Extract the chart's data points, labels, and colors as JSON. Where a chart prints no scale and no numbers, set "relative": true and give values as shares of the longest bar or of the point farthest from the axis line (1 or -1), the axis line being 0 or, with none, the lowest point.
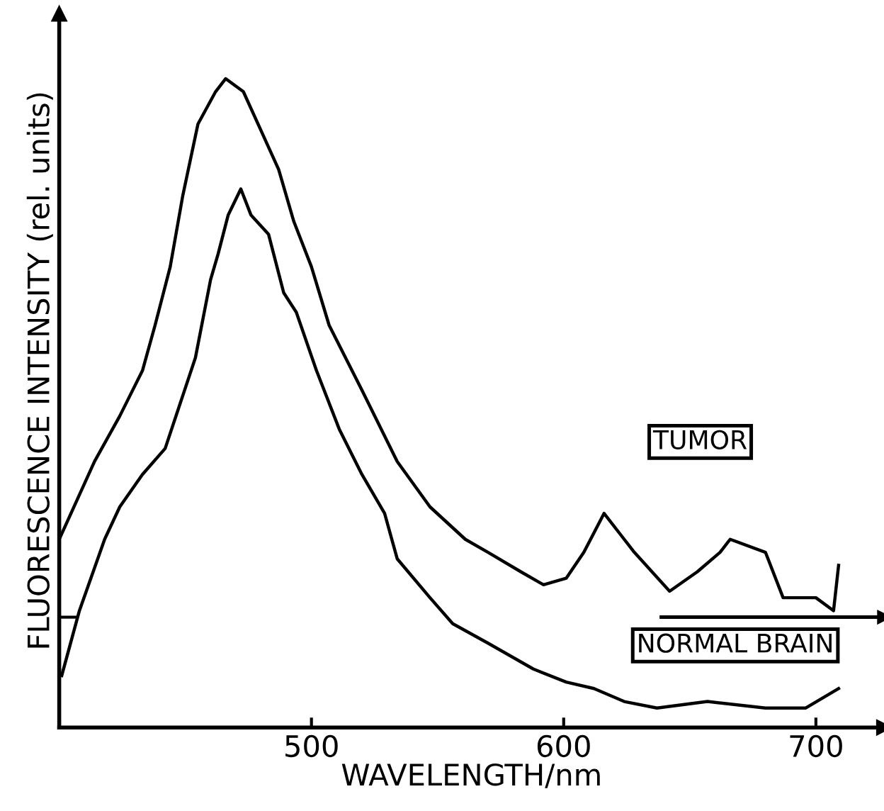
{
  "chart_data": {
    "type": "line",
    "xlabel": "WAVELENGTH/nm",
    "ylabel": "FLUORESCENCE INTENSITY (rel. units)",
    "relative": true,
    "xlim": [
      400,
      727
    ],
    "xticks": [
      500,
      600,
      700
    ],
    "grid": false,
    "legend": false,
    "marker": "none",
    "line_style": "solid",
    "series": [
      {
        "name": "TUMOR",
        "color": "#000000",
        "x": [
          400,
          414,
          424,
          433,
          438,
          444,
          449,
          455,
          462,
          466,
          473,
          480,
          487,
          493,
          500,
          507,
          520,
          534,
          547,
          561,
          570,
          583,
          592,
          601,
          608,
          616,
          624,
          628,
          642,
          653,
          662,
          666,
          680,
          687,
          700,
          707,
          709
        ],
        "values": [
          0.29,
          0.41,
          0.48,
          0.55,
          0.62,
          0.71,
          0.82,
          0.93,
          0.98,
          1.0,
          0.98,
          0.92,
          0.86,
          0.78,
          0.71,
          0.62,
          0.52,
          0.41,
          0.34,
          0.29,
          0.27,
          0.24,
          0.22,
          0.23,
          0.27,
          0.33,
          0.29,
          0.27,
          0.21,
          0.24,
          0.27,
          0.29,
          0.27,
          0.2,
          0.2,
          0.18,
          0.25
        ]
      },
      {
        "name": "NORMAL BRAIN",
        "color": "#000000",
        "x": [
          401,
          408,
          418,
          424,
          433,
          442,
          448,
          454,
          460,
          463,
          467,
          472,
          476,
          483,
          489,
          494,
          502,
          511,
          520,
          529,
          534,
          547,
          556,
          570,
          588,
          601,
          612,
          624,
          637,
          657,
          680,
          696,
          709
        ],
        "values": [
          0.08,
          0.18,
          0.29,
          0.34,
          0.39,
          0.43,
          0.5,
          0.57,
          0.69,
          0.73,
          0.79,
          0.83,
          0.79,
          0.76,
          0.67,
          0.64,
          0.55,
          0.46,
          0.39,
          0.33,
          0.26,
          0.2,
          0.16,
          0.13,
          0.09,
          0.07,
          0.06,
          0.04,
          0.03,
          0.04,
          0.03,
          0.03,
          0.06
        ]
      }
    ],
    "ref_lines": [
      {
        "axis": "y",
        "value": 0.17,
        "label": null
      }
    ]
  }
}
